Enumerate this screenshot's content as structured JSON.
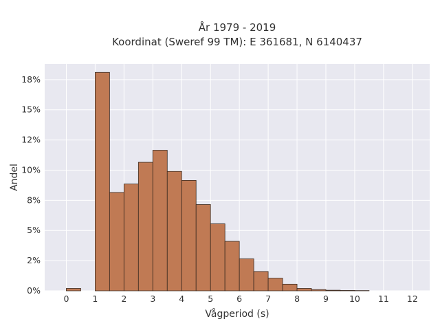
{
  "chart_data": {
    "type": "bar",
    "title": "År 1979 - 2019",
    "subtitle": "Koordinat (Sweref 99 TM): E 361681, N 6140437",
    "xlabel": "Vågperiod (s)",
    "ylabel": "Andel",
    "xlim": [
      -0.75,
      12.6
    ],
    "ylim": [
      0,
      0.188
    ],
    "x_ticks": [
      0,
      1,
      2,
      3,
      4,
      5,
      6,
      7,
      8,
      9,
      10,
      11,
      12
    ],
    "x_tick_labels": [
      "0",
      "1",
      "2",
      "3",
      "4",
      "5",
      "6",
      "7",
      "8",
      "9",
      "10",
      "11",
      "12"
    ],
    "y_ticks": [
      0,
      0.025,
      0.05,
      0.075,
      0.1,
      0.125,
      0.15,
      0.175
    ],
    "y_tick_labels": [
      "0%",
      "2%",
      "5%",
      "8%",
      "10%",
      "12%",
      "15%",
      "18%"
    ],
    "bin_width": 0.5,
    "bins": [
      {
        "start": 0.0,
        "value": 0.002
      },
      {
        "start": 1.0,
        "value": 0.181
      },
      {
        "start": 1.5,
        "value": 0.0815
      },
      {
        "start": 2.0,
        "value": 0.0885
      },
      {
        "start": 2.5,
        "value": 0.1065
      },
      {
        "start": 3.0,
        "value": 0.1165
      },
      {
        "start": 3.5,
        "value": 0.099
      },
      {
        "start": 4.0,
        "value": 0.0915
      },
      {
        "start": 4.5,
        "value": 0.0715
      },
      {
        "start": 5.0,
        "value": 0.0555
      },
      {
        "start": 5.5,
        "value": 0.041
      },
      {
        "start": 6.0,
        "value": 0.0265
      },
      {
        "start": 6.5,
        "value": 0.016
      },
      {
        "start": 7.0,
        "value": 0.0105
      },
      {
        "start": 7.5,
        "value": 0.0055
      },
      {
        "start": 8.0,
        "value": 0.002
      },
      {
        "start": 8.5,
        "value": 0.001
      },
      {
        "start": 9.0,
        "value": 0.0005
      },
      {
        "start": 9.5,
        "value": 0.0003
      },
      {
        "start": 10.0,
        "value": 0.0002
      }
    ],
    "bar_color": "#c07a54",
    "bar_edge_color": "#3a2a20",
    "grid": true,
    "plot_background": "#e8e8f0",
    "grid_color": "#ffffff",
    "legend": "none"
  }
}
